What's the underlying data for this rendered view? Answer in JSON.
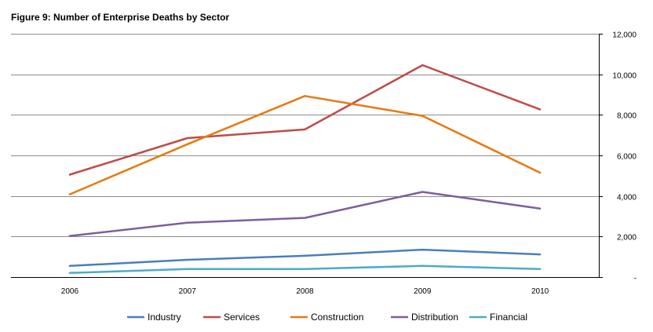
{
  "chart_data": {
    "type": "line",
    "title": "Figure 9: Number of Enterprise Deaths by Sector",
    "xlabel": "",
    "ylabel": "",
    "categories": [
      "2006",
      "2007",
      "2008",
      "2009",
      "2010"
    ],
    "ylim": [
      0,
      12000
    ],
    "yticks": [
      0,
      2000,
      4000,
      6000,
      8000,
      10000,
      12000
    ],
    "ytick_labels": [
      "-",
      "2,000",
      "4,000",
      "6,000",
      "8,000",
      "10,000",
      "12,000"
    ],
    "grid": true,
    "legend_position": "bottom",
    "series": [
      {
        "name": "Industry",
        "color": "#4a7ebb",
        "values": [
          550,
          850,
          1050,
          1350,
          1120
        ]
      },
      {
        "name": "Services",
        "color": "#be4b48",
        "values": [
          5050,
          6850,
          7280,
          10450,
          8270
        ]
      },
      {
        "name": "Construction",
        "color": "#e8790e",
        "values": [
          4080,
          6550,
          8930,
          7950,
          5150
        ]
      },
      {
        "name": "Distribution",
        "color": "#7d5fa0",
        "values": [
          2030,
          2680,
          2920,
          4200,
          3380
        ]
      },
      {
        "name": "Financial",
        "color": "#4bacc6",
        "values": [
          200,
          400,
          400,
          550,
          400
        ]
      }
    ]
  }
}
